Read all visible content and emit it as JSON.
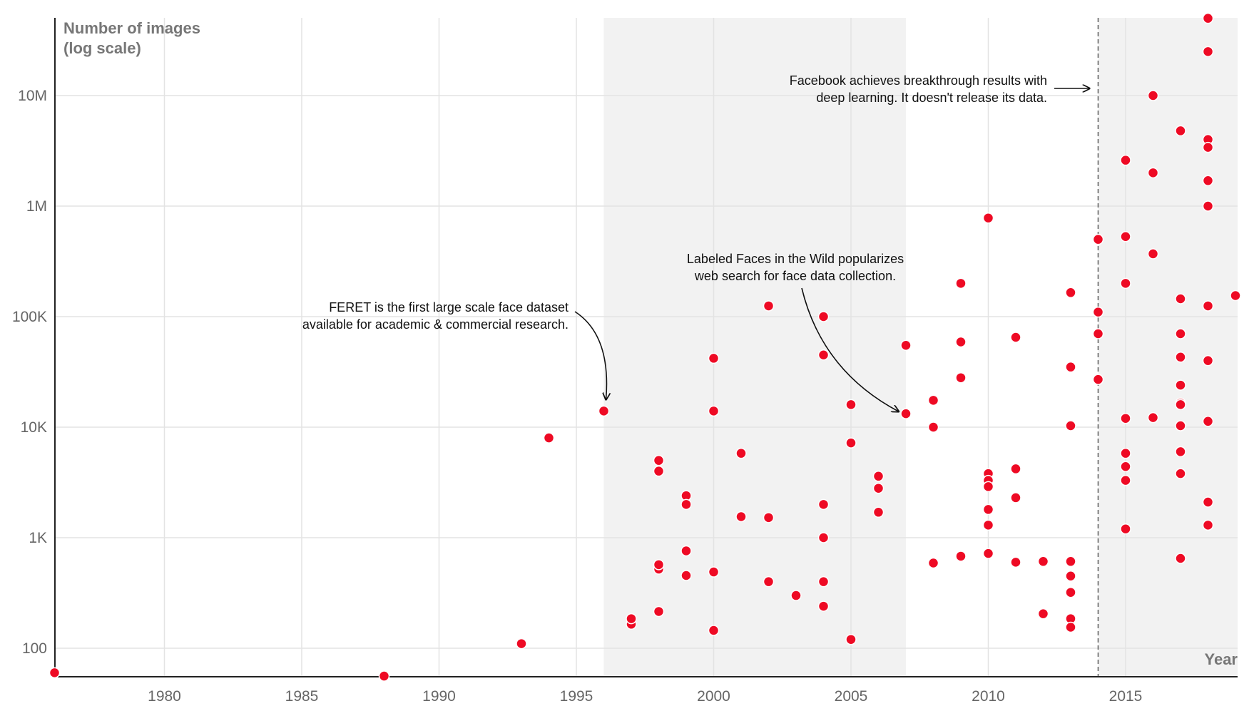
{
  "chart_data": {
    "type": "scatter",
    "ylabel_line1": "Number of images",
    "ylabel_line2": "(log scale)",
    "xlabel": "Year",
    "y_scale": "log",
    "xlim": [
      1976,
      2019
    ],
    "ylim": [
      55,
      55000000
    ],
    "x_ticks": [
      {
        "value": 1980,
        "label": "1980"
      },
      {
        "value": 1985,
        "label": "1985"
      },
      {
        "value": 1990,
        "label": "1990"
      },
      {
        "value": 1995,
        "label": "1995"
      },
      {
        "value": 2000,
        "label": "2000"
      },
      {
        "value": 2005,
        "label": "2005"
      },
      {
        "value": 2010,
        "label": "2010"
      },
      {
        "value": 2015,
        "label": "2015"
      }
    ],
    "y_ticks": [
      {
        "value": 100,
        "label": "100"
      },
      {
        "value": 1000,
        "label": "1K"
      },
      {
        "value": 10000,
        "label": "10K"
      },
      {
        "value": 100000,
        "label": "100K"
      },
      {
        "value": 1000000,
        "label": "1M"
      },
      {
        "value": 10000000,
        "label": "10M"
      }
    ],
    "shaded_region": [
      1996,
      2007
    ],
    "reference_line_year": 2014,
    "grid": true,
    "point_color": "#ee0a24",
    "annotations": [
      {
        "lines": [
          "FERET is the first large scale face dataset",
          "available for academic & commercial research."
        ],
        "target": [
          1996,
          14000
        ]
      },
      {
        "lines": [
          "Labeled Faces in the Wild popularizes",
          "web search for face data collection."
        ],
        "target": [
          2007,
          13233
        ]
      },
      {
        "lines": [
          "Facebook achieves breakthrough results with",
          "deep learning. It doesn't release its data."
        ],
        "target": [
          2014,
          11000000
        ]
      }
    ],
    "points": [
      [
        1976,
        60
      ],
      [
        1988,
        56
      ],
      [
        1993,
        110
      ],
      [
        1994,
        8000
      ],
      [
        1996,
        14000
      ],
      [
        1997,
        165
      ],
      [
        1997,
        185
      ],
      [
        1998,
        4000
      ],
      [
        1998,
        5000
      ],
      [
        1998,
        520
      ],
      [
        1998,
        570
      ],
      [
        1998,
        215
      ],
      [
        1999,
        2400
      ],
      [
        1999,
        2000
      ],
      [
        1999,
        760
      ],
      [
        1999,
        455
      ],
      [
        2000,
        42000
      ],
      [
        2000,
        14000
      ],
      [
        2000,
        490
      ],
      [
        2000,
        145
      ],
      [
        2001,
        5800
      ],
      [
        2001,
        1550
      ],
      [
        2002,
        125000
      ],
      [
        2002,
        1520
      ],
      [
        2002,
        400
      ],
      [
        2003,
        300
      ],
      [
        2004,
        100000
      ],
      [
        2004,
        45000
      ],
      [
        2004,
        2000
      ],
      [
        2004,
        1000
      ],
      [
        2004,
        400
      ],
      [
        2004,
        240
      ],
      [
        2005,
        16000
      ],
      [
        2005,
        7200
      ],
      [
        2005,
        120
      ],
      [
        2006,
        3600
      ],
      [
        2006,
        2800
      ],
      [
        2006,
        1700
      ],
      [
        2007,
        55000
      ],
      [
        2007,
        13233
      ],
      [
        2008,
        17500
      ],
      [
        2008,
        10000
      ],
      [
        2008,
        590
      ],
      [
        2009,
        200000
      ],
      [
        2009,
        59000
      ],
      [
        2009,
        28000
      ],
      [
        2009,
        680
      ],
      [
        2010,
        780000
      ],
      [
        2010,
        3800
      ],
      [
        2010,
        3300
      ],
      [
        2010,
        2900
      ],
      [
        2010,
        1800
      ],
      [
        2010,
        1300
      ],
      [
        2010,
        720
      ],
      [
        2011,
        65000
      ],
      [
        2011,
        4200
      ],
      [
        2011,
        2300
      ],
      [
        2011,
        600
      ],
      [
        2012,
        610
      ],
      [
        2012,
        205
      ],
      [
        2013,
        165000
      ],
      [
        2013,
        35000
      ],
      [
        2013,
        10300
      ],
      [
        2013,
        610
      ],
      [
        2013,
        450
      ],
      [
        2013,
        320
      ],
      [
        2013,
        185
      ],
      [
        2013,
        155
      ],
      [
        2014,
        500000
      ],
      [
        2014,
        110000
      ],
      [
        2014,
        70000
      ],
      [
        2014,
        27000
      ],
      [
        2015,
        2600000
      ],
      [
        2015,
        530000
      ],
      [
        2015,
        200000
      ],
      [
        2015,
        12000
      ],
      [
        2015,
        5800
      ],
      [
        2015,
        4400
      ],
      [
        2015,
        3300
      ],
      [
        2015,
        1200
      ],
      [
        2016,
        10000000
      ],
      [
        2016,
        2000000
      ],
      [
        2016,
        370000
      ],
      [
        2016,
        12200
      ],
      [
        2017,
        4800000
      ],
      [
        2017,
        145000
      ],
      [
        2017,
        70000
      ],
      [
        2017,
        43000
      ],
      [
        2017,
        24000
      ],
      [
        2017,
        16500
      ],
      [
        2017,
        16000
      ],
      [
        2017,
        10300
      ],
      [
        2017,
        6000
      ],
      [
        2017,
        3800
      ],
      [
        2017,
        650
      ],
      [
        2018,
        50000000
      ],
      [
        2018,
        25000000
      ],
      [
        2018,
        4000000
      ],
      [
        2018,
        3400000
      ],
      [
        2018,
        1700000
      ],
      [
        2018,
        1000000
      ],
      [
        2018,
        125000
      ],
      [
        2018,
        40000
      ],
      [
        2018,
        11300
      ],
      [
        2018,
        2100
      ],
      [
        2018,
        1300
      ],
      [
        2019,
        155000
      ]
    ]
  }
}
